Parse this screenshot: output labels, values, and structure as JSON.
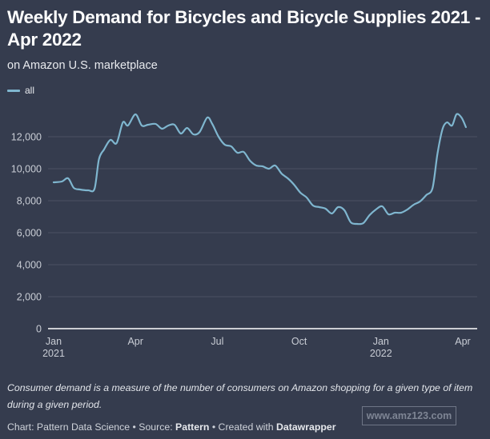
{
  "header": {
    "title": "Weekly Demand for Bicycles and Bicycle Supplies 2021 -  Apr 2022",
    "subtitle": "on Amazon U.S. marketplace"
  },
  "legend": [
    {
      "label": "all",
      "color": "#7fb6cf"
    }
  ],
  "footer": {
    "notes": "Consumer demand is a measure of the number of consumers on Amazon shopping for a given type of item during a given period.",
    "byline_prefix": "Chart: Pattern Data Science • Source: ",
    "source": "Pattern",
    "byline_mid": " • Created with ",
    "tool": "Datawrapper",
    "watermark": "www.amz123.com"
  },
  "colors": {
    "background": "#353c4e",
    "line": "#7fb6cf",
    "grid": "#4a5163",
    "baseline": "#ffffff",
    "tick_text": "#c9cdd5"
  },
  "chart_data": {
    "type": "line",
    "title": "Weekly Demand for Bicycles and Bicycle Supplies 2021 -  Apr 2022",
    "subtitle": "on Amazon U.S. marketplace",
    "xlabel": "",
    "ylabel": "",
    "ylim": [
      0,
      14000
    ],
    "y_ticks": [
      0,
      2000,
      4000,
      6000,
      8000,
      10000,
      12000
    ],
    "y_tick_labels": [
      "0",
      "2,000",
      "4,000",
      "6,000",
      "8,000",
      "10,000",
      "12,000"
    ],
    "x_ticks": [
      {
        "week": 0,
        "label": "Jan",
        "sublabel": "2021"
      },
      {
        "week": 13,
        "label": "Apr",
        "sublabel": ""
      },
      {
        "week": 26,
        "label": "Jul",
        "sublabel": ""
      },
      {
        "week": 39,
        "label": "Oct",
        "sublabel": ""
      },
      {
        "week": 52,
        "label": "Jan",
        "sublabel": "2022"
      },
      {
        "week": 65,
        "label": "Apr",
        "sublabel": ""
      }
    ],
    "x_range_weeks": [
      0,
      67
    ],
    "grid": true,
    "legend_position": "top-left",
    "series": [
      {
        "name": "all",
        "x_weeks": [
          0,
          1.3,
          2.3,
          3.2,
          4.2,
          5.5,
          6.5,
          7.2,
          8.0,
          9.0,
          10.0,
          11.0,
          11.8,
          13.0,
          14.0,
          15.0,
          16.2,
          17.2,
          18.2,
          19.2,
          20.2,
          21.2,
          22.2,
          23.2,
          24.4,
          25.2,
          26.2,
          27.2,
          28.2,
          29.2,
          30.2,
          31.2,
          32.2,
          33.2,
          34.2,
          35.2,
          36.2,
          37.2,
          38.2,
          39.2,
          40.2,
          41.2,
          42.2,
          43.2,
          44.2,
          45.2,
          46.2,
          47.2,
          48.2,
          49.2,
          50.2,
          51.2,
          52.2,
          53.2,
          54.2,
          55.2,
          56.2,
          57.2,
          58.2,
          59.2,
          60.2,
          61.0,
          61.8,
          62.5,
          63.3,
          64.0,
          64.8,
          65.5
        ],
        "values": [
          9150,
          9200,
          9400,
          8800,
          8700,
          8650,
          8750,
          10600,
          11200,
          11800,
          11600,
          12900,
          12700,
          13400,
          12700,
          12750,
          12800,
          12500,
          12700,
          12750,
          12200,
          12550,
          12150,
          12300,
          13200,
          12800,
          12000,
          11500,
          11400,
          11000,
          11050,
          10500,
          10200,
          10150,
          10000,
          10200,
          9700,
          9400,
          9000,
          8500,
          8200,
          7700,
          7600,
          7500,
          7200,
          7600,
          7400,
          6650,
          6550,
          6600,
          7100,
          7450,
          7650,
          7150,
          7250,
          7250,
          7450,
          7750,
          7950,
          8350,
          8800,
          11000,
          12500,
          12900,
          12700,
          13400,
          13200,
          12600
        ]
      }
    ]
  }
}
